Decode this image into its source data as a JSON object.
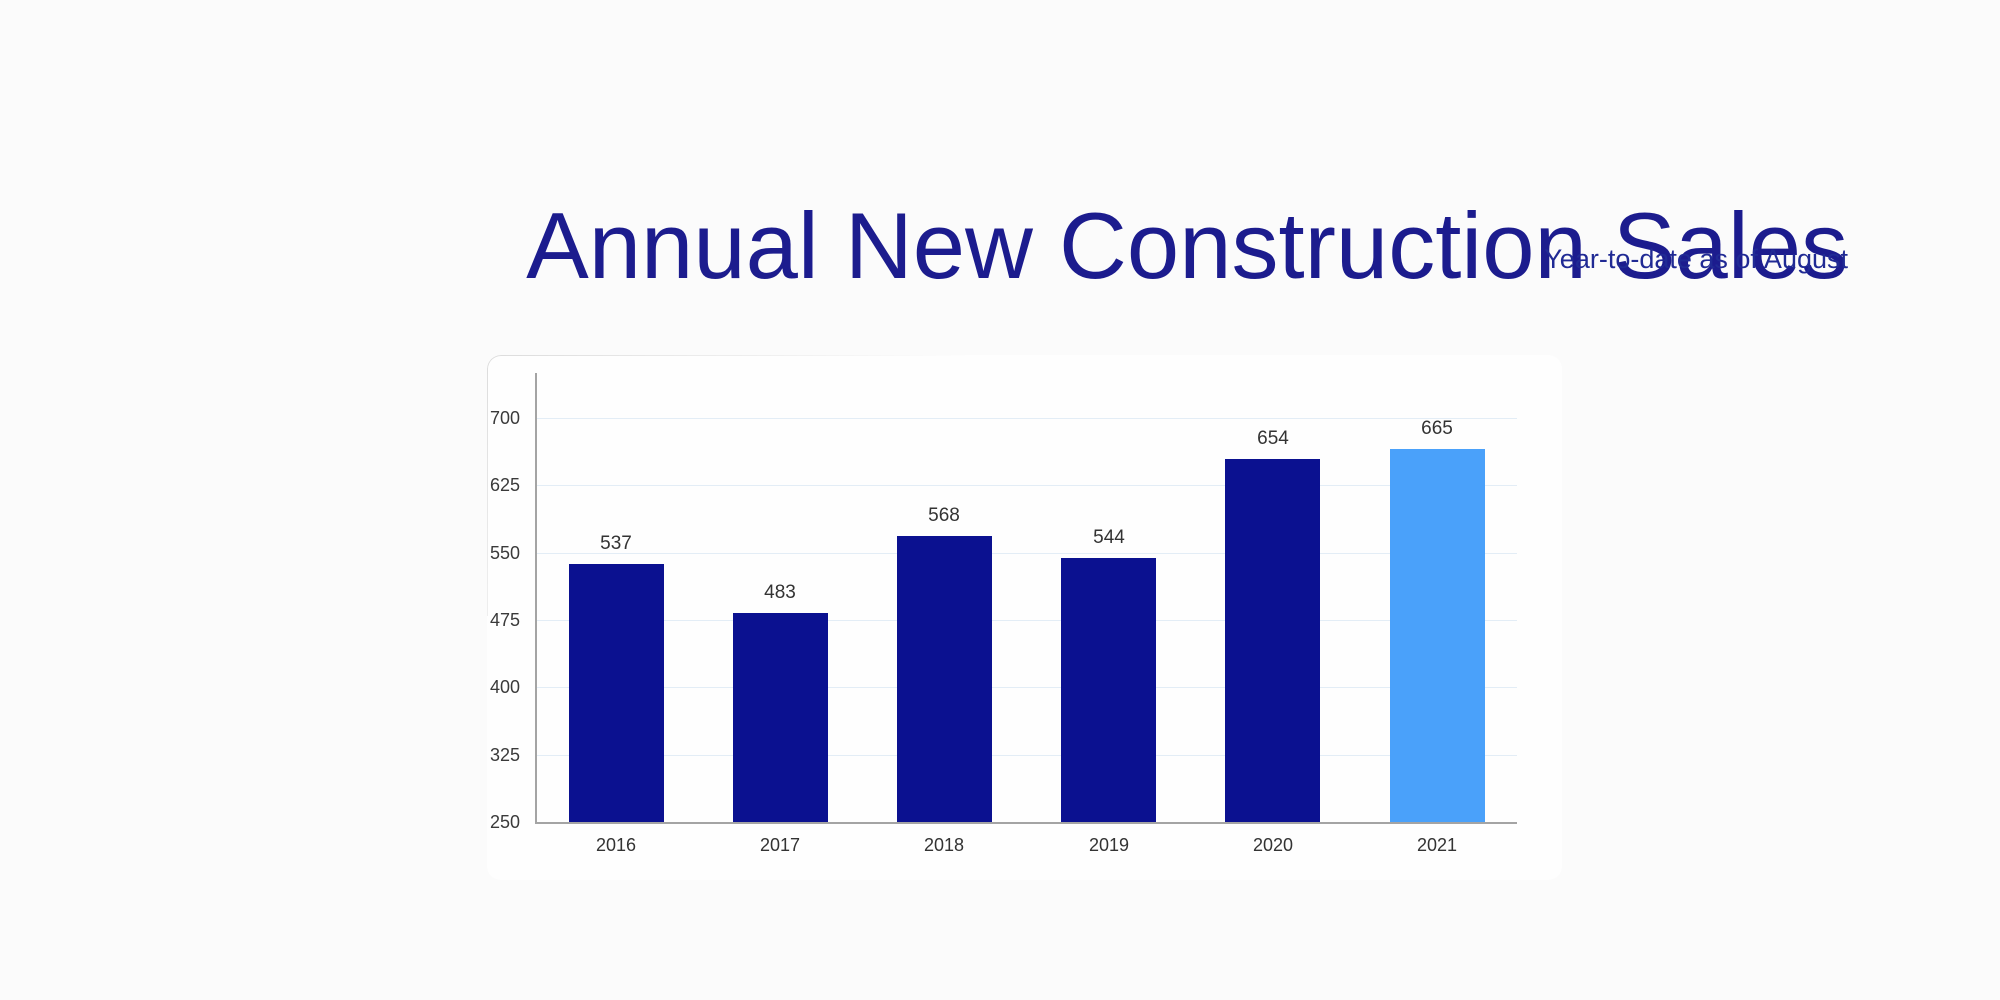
{
  "header": {
    "title": "Annual New Construction Sales",
    "subtitle": "Year-to-date as of August"
  },
  "chart_data": {
    "type": "bar",
    "title": "Annual New Construction Sales",
    "subtitle": "Year-to-date as of August",
    "categories": [
      "2016",
      "2017",
      "2018",
      "2019",
      "2020",
      "2021"
    ],
    "values": [
      537,
      483,
      568,
      544,
      654,
      665
    ],
    "value_labels": [
      "537",
      "483",
      "568",
      "544",
      "654",
      "665"
    ],
    "highlighted_category": "2021",
    "xlabel": "",
    "ylabel": "",
    "ylim": [
      250,
      750
    ],
    "yticks": [
      250,
      325,
      400,
      475,
      550,
      625,
      700
    ],
    "grid": "horizontal",
    "legend": "none"
  },
  "colors": {
    "title_text": "#1c1c8e",
    "subtitle_text": "#202a94",
    "bar_primary": "#0b1190",
    "bar_highlight": "#4aa1fa",
    "axis_line": "#a4a4a4",
    "gridline": "#e3edf6",
    "tick_label": "#3a3a3a",
    "value_label": "#333333",
    "category_label": "#333333"
  }
}
